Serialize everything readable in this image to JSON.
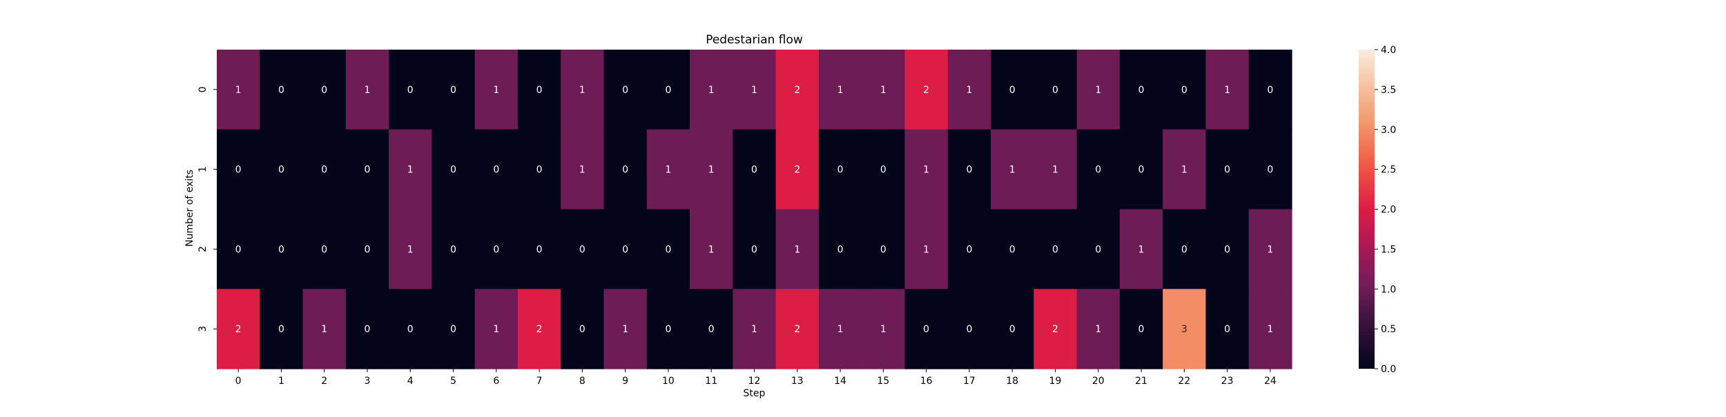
{
  "chart_data": {
    "type": "heatmap",
    "title": "Pedestarian flow",
    "xlabel": "Step",
    "ylabel": "Number of exits",
    "x_categories": [
      "0",
      "1",
      "2",
      "3",
      "4",
      "5",
      "6",
      "7",
      "8",
      "9",
      "10",
      "11",
      "12",
      "13",
      "14",
      "15",
      "16",
      "17",
      "18",
      "19",
      "20",
      "21",
      "22",
      "23",
      "24"
    ],
    "y_categories": [
      "0",
      "1",
      "2",
      "3"
    ],
    "values": [
      [
        1,
        0,
        0,
        1,
        0,
        0,
        1,
        0,
        1,
        0,
        0,
        1,
        1,
        2,
        1,
        1,
        2,
        1,
        0,
        0,
        1,
        0,
        0,
        1,
        0
      ],
      [
        0,
        0,
        0,
        0,
        1,
        0,
        0,
        0,
        1,
        0,
        1,
        1,
        0,
        2,
        0,
        0,
        1,
        0,
        1,
        1,
        0,
        0,
        1,
        0,
        0
      ],
      [
        0,
        0,
        0,
        0,
        1,
        0,
        0,
        0,
        0,
        0,
        0,
        1,
        0,
        1,
        0,
        0,
        1,
        0,
        0,
        0,
        0,
        1,
        0,
        0,
        1
      ],
      [
        2,
        0,
        1,
        0,
        0,
        0,
        1,
        2,
        0,
        1,
        0,
        0,
        1,
        2,
        1,
        1,
        0,
        0,
        0,
        2,
        1,
        0,
        3,
        0,
        1
      ]
    ],
    "colorbar": {
      "range": [
        0,
        4
      ],
      "ticks": [
        "0.0",
        "0.5",
        "1.0",
        "1.5",
        "2.0",
        "2.5",
        "3.0",
        "3.5",
        "4.0"
      ],
      "colormap": "rocket"
    },
    "annotations": true,
    "grid": false
  }
}
